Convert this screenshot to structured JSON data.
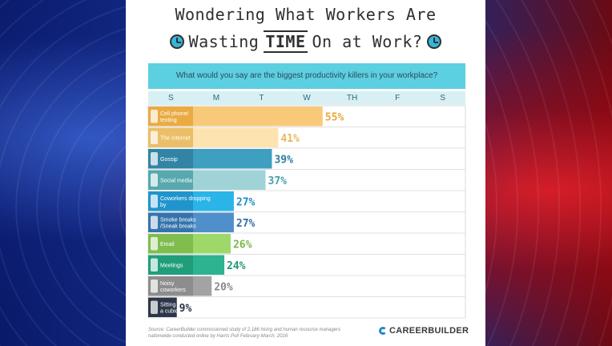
{
  "title_line1": "Wondering What Workers Are",
  "title_line2_a": "Wasting",
  "title_line2_b": "TIME",
  "title_line2_c": "On at Work?",
  "question": "What would you say are the biggest productivity killers in your workplace?",
  "days": [
    "S",
    "M",
    "T",
    "W",
    "TH",
    "F",
    "S"
  ],
  "source": "Source: CareerBuilder commissioned study of 2,186 hiring and human resource managers nationwide conducted online by Harris Poll February-March, 2016",
  "logo_text": "CAREERBUILDER",
  "chart_data": {
    "type": "bar",
    "orientation": "horizontal",
    "categories": [
      "Cell phone/ texting",
      "The Internet",
      "Gossip",
      "Social media",
      "Coworkers dropping by",
      "Smoke breaks /Sneak breaks",
      "Email",
      "Meetings",
      "Noisy coworkers",
      "Sitting in a cubicle"
    ],
    "values": [
      55,
      41,
      39,
      37,
      27,
      27,
      26,
      24,
      20,
      9
    ],
    "value_labels": [
      "55%",
      "41%",
      "39%",
      "37%",
      "27%",
      "27%",
      "26%",
      "24%",
      "20%",
      "9%"
    ],
    "bar_colors": [
      "#f9c97a",
      "#fde3b0",
      "#3f9fc0",
      "#9fd3d8",
      "#2bb4e8",
      "#4f8fca",
      "#9ed86a",
      "#2db38f",
      "#a3a3a3",
      "#34425a"
    ],
    "label_colors": [
      "#e8a63a",
      "#e8b85a",
      "#2f7fa0",
      "#4aa0a8",
      "#1e8fc8",
      "#2f6fa8",
      "#7ab84a",
      "#1f9a78",
      "#8a8a8a",
      "#2a3448"
    ],
    "icons": [
      "phone-icon",
      "monitor-icon",
      "chat-icon",
      "social-icon",
      "location-pin-icon",
      "coffee-icon",
      "envelope-icon",
      "people-icon",
      "megaphone-icon",
      "chair-icon"
    ],
    "xlim": [
      0,
      100
    ]
  }
}
